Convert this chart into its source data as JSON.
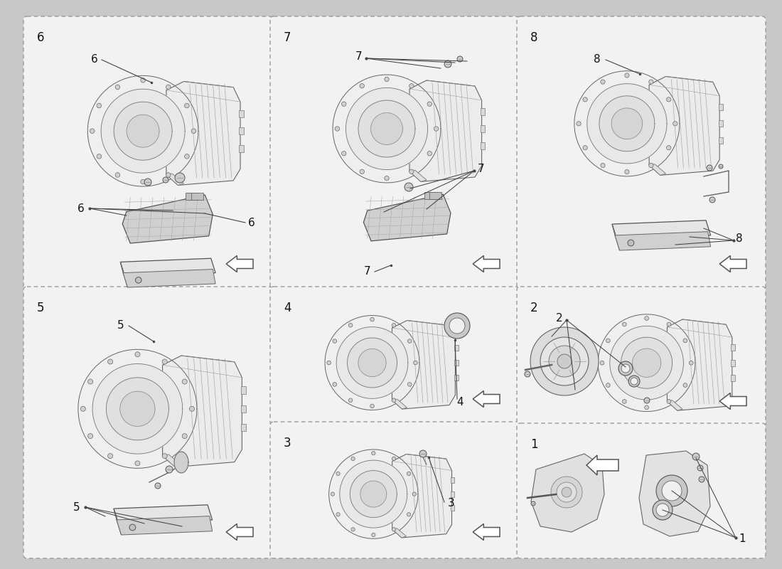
{
  "bg_color": "#c8c8c8",
  "panel_bg": "#f2f2f2",
  "fig_width": 11.0,
  "fig_height": 8.0,
  "dpi": 100,
  "panels": {
    "p6": [
      38,
      28,
      340,
      375
    ],
    "p7": [
      385,
      28,
      340,
      375
    ],
    "p8": [
      732,
      28,
      340,
      375
    ],
    "p5": [
      38,
      408,
      340,
      372
    ],
    "p4": [
      385,
      408,
      340,
      185
    ],
    "p3": [
      385,
      598,
      340,
      182
    ],
    "p2": [
      732,
      408,
      340,
      188
    ],
    "p1": [
      732,
      600,
      340,
      180
    ]
  },
  "panel_labels": {
    "p6": "6",
    "p7": "7",
    "p8": "8",
    "p5": "5",
    "p4": "4",
    "p3": "3",
    "p2": "2",
    "p1": "1"
  },
  "lc": "#444444",
  "light_gray": "#e8e8e8",
  "mid_gray": "#bbbbbb",
  "dark_gray": "#888888"
}
